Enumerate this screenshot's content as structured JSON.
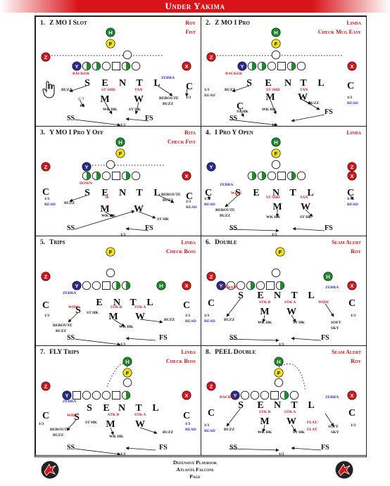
{
  "header": {
    "title": "Under Yakima",
    "accent": "#d8141a"
  },
  "panels": [
    {
      "number": "1.",
      "name": "Z MO I Slot",
      "call1": "Roy",
      "call2": "Fist",
      "labels": [
        "BACKER",
        "BUZZ",
        "C-7",
        "1/3",
        "ST SHD",
        "WK HK",
        "TAN",
        "ST HK",
        "ZEBRA",
        "REROUTE",
        "BUZZ",
        "1/3",
        "SS",
        "1/3",
        "FS"
      ]
    },
    {
      "number": "2.",
      "name": "Z MO I Pro",
      "call1": "Linda",
      "call2": "Check Mug Easy",
      "labels": [
        "BACKER",
        "BUZZ",
        "1/3",
        "READ",
        "ST SHD",
        "WK HK",
        "TAN",
        "BUZZ",
        "ST HK",
        "1/3",
        "READ",
        "SS",
        "1/3",
        "FS"
      ]
    },
    {
      "number": "3.",
      "name": "Y MO I Pro Y Off",
      "call1": "Rita",
      "call2": "Check Fist",
      "labels": [
        "DOWN",
        "BUZZ",
        "30",
        "WK HK",
        "REROUTE",
        "BUZZ",
        "ST HK",
        "1/3",
        "READ",
        "1/3",
        "READ",
        "SS",
        "1/3",
        "FS"
      ]
    },
    {
      "number": "4.",
      "name": "I Pro Y Open",
      "call1": "Linda",
      "call2": "",
      "labels": [
        "ZEBRA",
        "WIDE",
        "REROUTE",
        "BUZZ",
        "ST SHD",
        "WK HK",
        "TAN",
        "ST HK",
        "1/3",
        "READ",
        "1/3",
        "READ",
        "SS",
        "1/3",
        "FS"
      ]
    },
    {
      "number": "5.",
      "name": "Trips",
      "call1": "Linda",
      "call2": "Check Boss",
      "labels": [
        "ZEBRA",
        "WIDE",
        "REROUTE",
        "BUZZ",
        "ST HK",
        "STK B",
        "WK HK",
        "STK A",
        "BUZZ",
        "1/3",
        "1/3",
        "READ",
        "SS",
        "1/3",
        "FS"
      ]
    },
    {
      "number": "6.",
      "name": "Double",
      "call1": "Seam Alert",
      "call2": "Roy",
      "labels": [
        "BACKER",
        "BUZZ",
        "STK B",
        "WK HK",
        "STK A",
        "ST HK",
        "WIDE",
        "SOFT",
        "SKY",
        "ZEBRA",
        "1/3",
        "READ",
        "1/3",
        "SS",
        "1/3",
        "FS"
      ]
    },
    {
      "number": "7.",
      "name": "FLY Trips",
      "call1": "Linda",
      "call2": "Check Boss",
      "labels": [
        "ZEBRA",
        "WIDE",
        "REROUTE",
        "BUZZ",
        "ST HK",
        "STK B",
        "WK HK",
        "STK A",
        "BUZZ",
        "1/3",
        "1/3",
        "READ",
        "SS",
        "1/3",
        "FS"
      ]
    },
    {
      "number": "8.",
      "name": "PEEL Double",
      "call1": "Seam Alert",
      "call2": "Roy",
      "labels": [
        "BACKER",
        "BUZZ",
        "STK B",
        "WK HK",
        "STK A",
        "ST HK",
        "FLAT/",
        "FLAT",
        "SOFT",
        "SKY",
        "ZEBRA",
        "1/3",
        "READ",
        "1/3",
        "SS",
        "1/3",
        "FS"
      ]
    }
  ],
  "footer": {
    "line1": "Defensive Playbook",
    "line2": "Atlanta Falcons",
    "line3": "Page"
  },
  "positions": {
    "H": "H",
    "F": "F",
    "Z": "Z",
    "X": "X",
    "Y": "Y",
    "S": "S",
    "E": "E",
    "N": "N",
    "T": "T",
    "L": "L",
    "M": "M",
    "W": "W",
    "C": "C"
  },
  "colors": {
    "H": "#1d8a2e",
    "F": "#f2e21a",
    "Z": "#d8141a",
    "X": "#d8141a",
    "Y": "#2a2a8c",
    "red_text": "#c0141a",
    "blue_text": "#2a2aaa"
  }
}
